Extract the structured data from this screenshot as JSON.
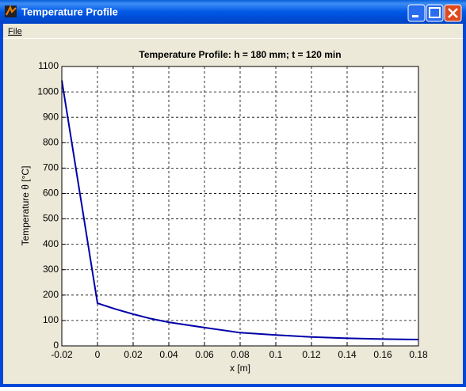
{
  "window": {
    "title": "Temperature Profile",
    "menu": [
      "File"
    ]
  },
  "chart_data": {
    "type": "line",
    "title": "Temperature Profile: h = 180 mm; t = 120 min",
    "x_label": "x [m]",
    "y_label": "Temperature  θ [°C]",
    "x": [
      -0.02,
      0,
      0.01,
      0.02,
      0.03,
      0.04,
      0.06,
      0.08,
      0.1,
      0.12,
      0.14,
      0.16,
      0.18
    ],
    "values": [
      1045,
      168,
      145,
      125,
      107,
      93,
      72,
      52,
      43,
      35,
      30,
      27,
      25
    ],
    "color": "#0000a8",
    "xlim": [
      -0.02,
      0.18
    ],
    "xticks": [
      -0.02,
      0,
      0.02,
      0.04,
      0.06,
      0.08,
      0.1,
      0.12,
      0.14,
      0.16,
      0.18
    ],
    "ylim": [
      0,
      1100
    ],
    "yticks": [
      0,
      100,
      200,
      300,
      400,
      500,
      600,
      700,
      800,
      900,
      1000,
      1100
    ],
    "grid": true
  }
}
